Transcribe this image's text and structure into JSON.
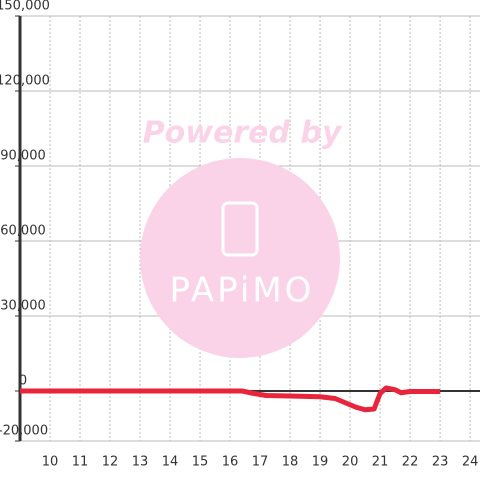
{
  "chart_data": {
    "type": "line",
    "watermark": {
      "text": "Powered by",
      "logo": "PAPiMO"
    },
    "x": [
      9,
      16.4,
      16.8,
      17.2,
      18,
      19,
      19.5,
      19.8,
      20.2,
      20.5,
      20.8,
      21,
      21.2,
      21.5,
      21.7,
      22,
      23
    ],
    "series": [
      {
        "color": "#e8253a",
        "values": [
          0,
          0,
          -1000,
          -1800,
          -2000,
          -2300,
          -3000,
          -4500,
          -6500,
          -7500,
          -7200,
          -1000,
          1200,
          500,
          -700,
          -200,
          -200
        ]
      }
    ],
    "xlim": [
      9,
      24.33
    ],
    "xticks": [
      10,
      11,
      12,
      13,
      14,
      15,
      16,
      17,
      18,
      19,
      20,
      21,
      22,
      23,
      24
    ],
    "ylim": [
      -20000,
      150000
    ],
    "yticks": [
      {
        "value": -20000,
        "label": "-20,000"
      },
      0,
      {
        "value": 30000,
        "label": "30,000"
      },
      {
        "value": 60000,
        "label": "60,000"
      },
      {
        "value": 90000,
        "label": "90,000"
      },
      {
        "value": 120000,
        "label": "120,000"
      },
      {
        "value": 150000,
        "label": "150,000"
      }
    ],
    "grid": true
  }
}
